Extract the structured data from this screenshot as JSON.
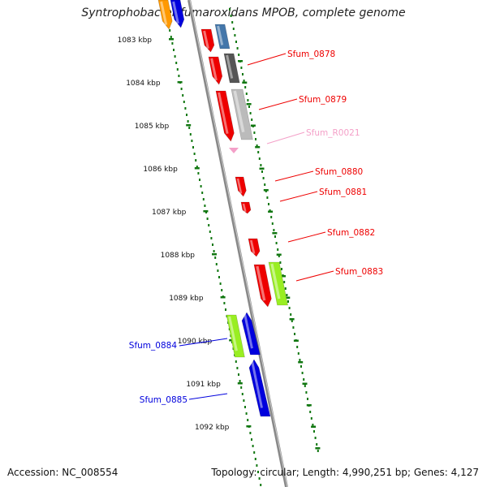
{
  "title": "Syntrophobacter fumaroxidans MPOB, complete genome",
  "accession": "Accession: NC_008554",
  "topology": "Topology: circular; Length: 4,990,251 bp; Genes: 4,127",
  "colors": {
    "red": "#ee0000",
    "blue": "#0000dd",
    "steelblue": "#4477aa",
    "darkgray": "#555555",
    "lightgray": "#bbbbbb",
    "lime": "#99ee22",
    "orange": "#ff9900",
    "pink": "#f4a0c8",
    "tick_green": "#117711",
    "backbone": "#888888"
  },
  "kbp_ticks": [
    "1083 kbp",
    "1084 kbp",
    "1085 kbp",
    "1086 kbp",
    "1087 kbp",
    "1088 kbp",
    "1089 kbp",
    "1090 kbp",
    "1091 kbp",
    "1092 kbp"
  ],
  "gene_labels": [
    {
      "text": "Sfum_0878",
      "color": "#ee0000",
      "side": "right"
    },
    {
      "text": "Sfum_0879",
      "color": "#ee0000",
      "side": "right"
    },
    {
      "text": "Sfum_R0021",
      "color": "#f4a0c8",
      "side": "right"
    },
    {
      "text": "Sfum_0880",
      "color": "#ee0000",
      "side": "right"
    },
    {
      "text": "Sfum_0881",
      "color": "#ee0000",
      "side": "right"
    },
    {
      "text": "Sfum_0882",
      "color": "#ee0000",
      "side": "right"
    },
    {
      "text": "Sfum_0883",
      "color": "#ee0000",
      "side": "right"
    },
    {
      "text": "Sfum_0884",
      "color": "#0000dd",
      "side": "left"
    },
    {
      "text": "Sfum_0885",
      "color": "#0000dd",
      "side": "left"
    }
  ]
}
